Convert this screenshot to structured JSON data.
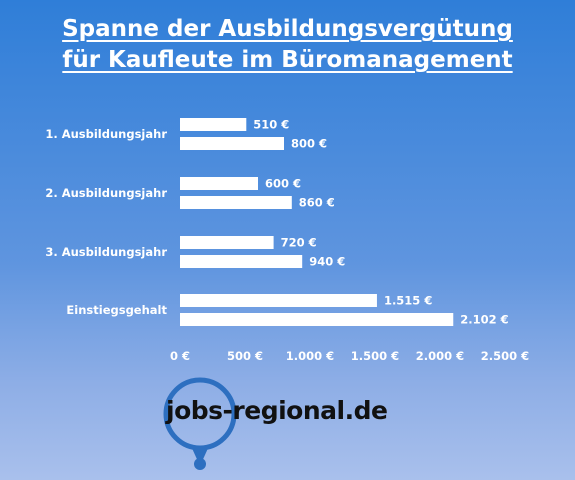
{
  "title": {
    "line1": "Spanne der Ausbildungsvergütung",
    "line2": "für Kaufleute im Büromanagement"
  },
  "chart_data": {
    "type": "bar",
    "orientation": "horizontal",
    "categories": [
      "1. Ausbildungsjahr",
      "2. Ausbildungsjahr",
      "3. Ausbildungsjahr",
      "Einstiegsgehalt"
    ],
    "series": [
      {
        "values": [
          510,
          600,
          720,
          1515
        ],
        "labels": [
          "510 €",
          "600 €",
          "720 €",
          "1.515 €"
        ]
      },
      {
        "values": [
          800,
          860,
          940,
          2102
        ],
        "labels": [
          "800 €",
          "860 €",
          "940 €",
          "2.102 €"
        ]
      }
    ],
    "xlim": [
      0,
      2500
    ],
    "xticks": [
      0,
      500,
      1000,
      1500,
      2000,
      2500
    ],
    "xtick_labels": [
      "0 €",
      "500 €",
      "1.000 €",
      "1.500 €",
      "2.000 €",
      "2.500 €"
    ],
    "bar_color": "#ffffff",
    "grid": false,
    "legend": "none"
  },
  "logo": {
    "part1": "jobs-",
    "part2": "regional.de",
    "ring_color": "#2d6fc0",
    "text_color": "#111111"
  }
}
